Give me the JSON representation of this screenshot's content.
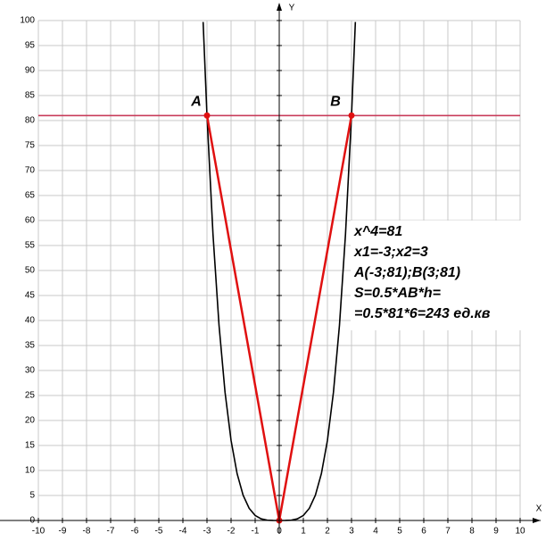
{
  "chart_data": {
    "type": "line",
    "x_label": "X",
    "y_label": "Y",
    "xlim": [
      -10,
      10
    ],
    "ylim": [
      0,
      100
    ],
    "xticks": [
      -10,
      -9,
      -8,
      -7,
      -6,
      -5,
      -4,
      -3,
      -2,
      -1,
      0,
      1,
      2,
      3,
      4,
      5,
      6,
      7,
      8,
      9,
      10
    ],
    "yticks": [
      0,
      5,
      10,
      15,
      20,
      25,
      30,
      35,
      40,
      45,
      50,
      55,
      60,
      65,
      70,
      75,
      80,
      85,
      90,
      95,
      100
    ],
    "grid": true,
    "series": [
      {
        "color": "#000000",
        "x": [
          -3.16,
          -3,
          -2.75,
          -2.5,
          -2.25,
          -2,
          -1.75,
          -1.5,
          -1.25,
          -1,
          -0.75,
          -0.5,
          -0.25,
          0,
          0.25,
          0.5,
          0.75,
          1,
          1.25,
          1.5,
          1.75,
          2,
          2.25,
          2.5,
          2.75,
          3,
          3.16
        ],
        "values": [
          99.71,
          81,
          57.19,
          39.06,
          25.63,
          16,
          9.38,
          5.06,
          2.44,
          1,
          0.32,
          0.06,
          0.004,
          0,
          0.004,
          0.06,
          0.32,
          1,
          2.44,
          5.06,
          9.38,
          16,
          25.63,
          39.06,
          57.19,
          81,
          99.71
        ]
      },
      {
        "color": "#c83c5a",
        "x": [
          -10,
          10
        ],
        "values": [
          81,
          81
        ]
      },
      {
        "color": "#e01010",
        "x": [
          -3,
          0,
          3
        ],
        "values": [
          81,
          0,
          81
        ],
        "markers": true
      }
    ],
    "points": [
      {
        "label": "A",
        "x": -3,
        "y": 81
      },
      {
        "label": "B",
        "x": 3,
        "y": 81
      }
    ],
    "annotations": [
      "x^4=81",
      "x1=-3;x2=3",
      "A(-3;81);B(3;81)",
      "S=0.5*AB*h=",
      "=0.5*81*6=243 ед.кв"
    ]
  }
}
